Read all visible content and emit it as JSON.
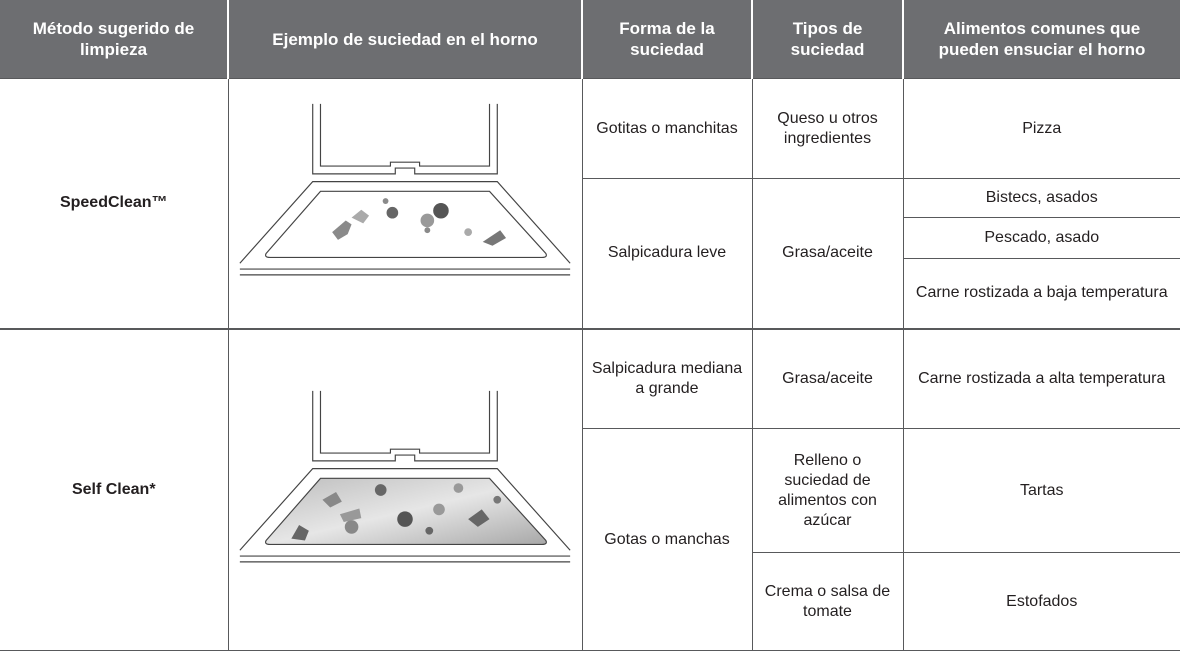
{
  "table": {
    "header": [
      "Método sugerido de limpieza",
      "Ejemplo de suciedad en el horno",
      "Forma de la suciedad",
      "Tipos de suciedad",
      "Alimentos comunes que pueden ensuciar el horno"
    ],
    "sections": [
      {
        "method": "SpeedClean™",
        "forms": [
          {
            "form": "Gotitas o manchitas",
            "types": [
              {
                "type": "Queso u otros ingredientes",
                "foods": [
                  "Pizza"
                ]
              }
            ]
          },
          {
            "form": "Salpicadura leve",
            "types": [
              {
                "type": "Grasa/aceite",
                "foods": [
                  "Bistecs, asados",
                  "Pescado, asado",
                  "Carne rostizada a baja temperatura"
                ]
              }
            ]
          }
        ]
      },
      {
        "method": "Self Clean*",
        "forms": [
          {
            "form": "Salpicadura mediana a grande",
            "types": [
              {
                "type": "Grasa/aceite",
                "foods": [
                  "Carne rostizada a alta temperatura"
                ]
              }
            ]
          },
          {
            "form": "Gotas o manchas",
            "types": [
              {
                "type": "Relleno o suciedad de alimentos con azúcar",
                "foods": [
                  "Tartas"
                ]
              },
              {
                "type": "Crema o salsa de tomate",
                "foods": [
                  "Estofados"
                ]
              }
            ]
          }
        ]
      }
    ]
  }
}
